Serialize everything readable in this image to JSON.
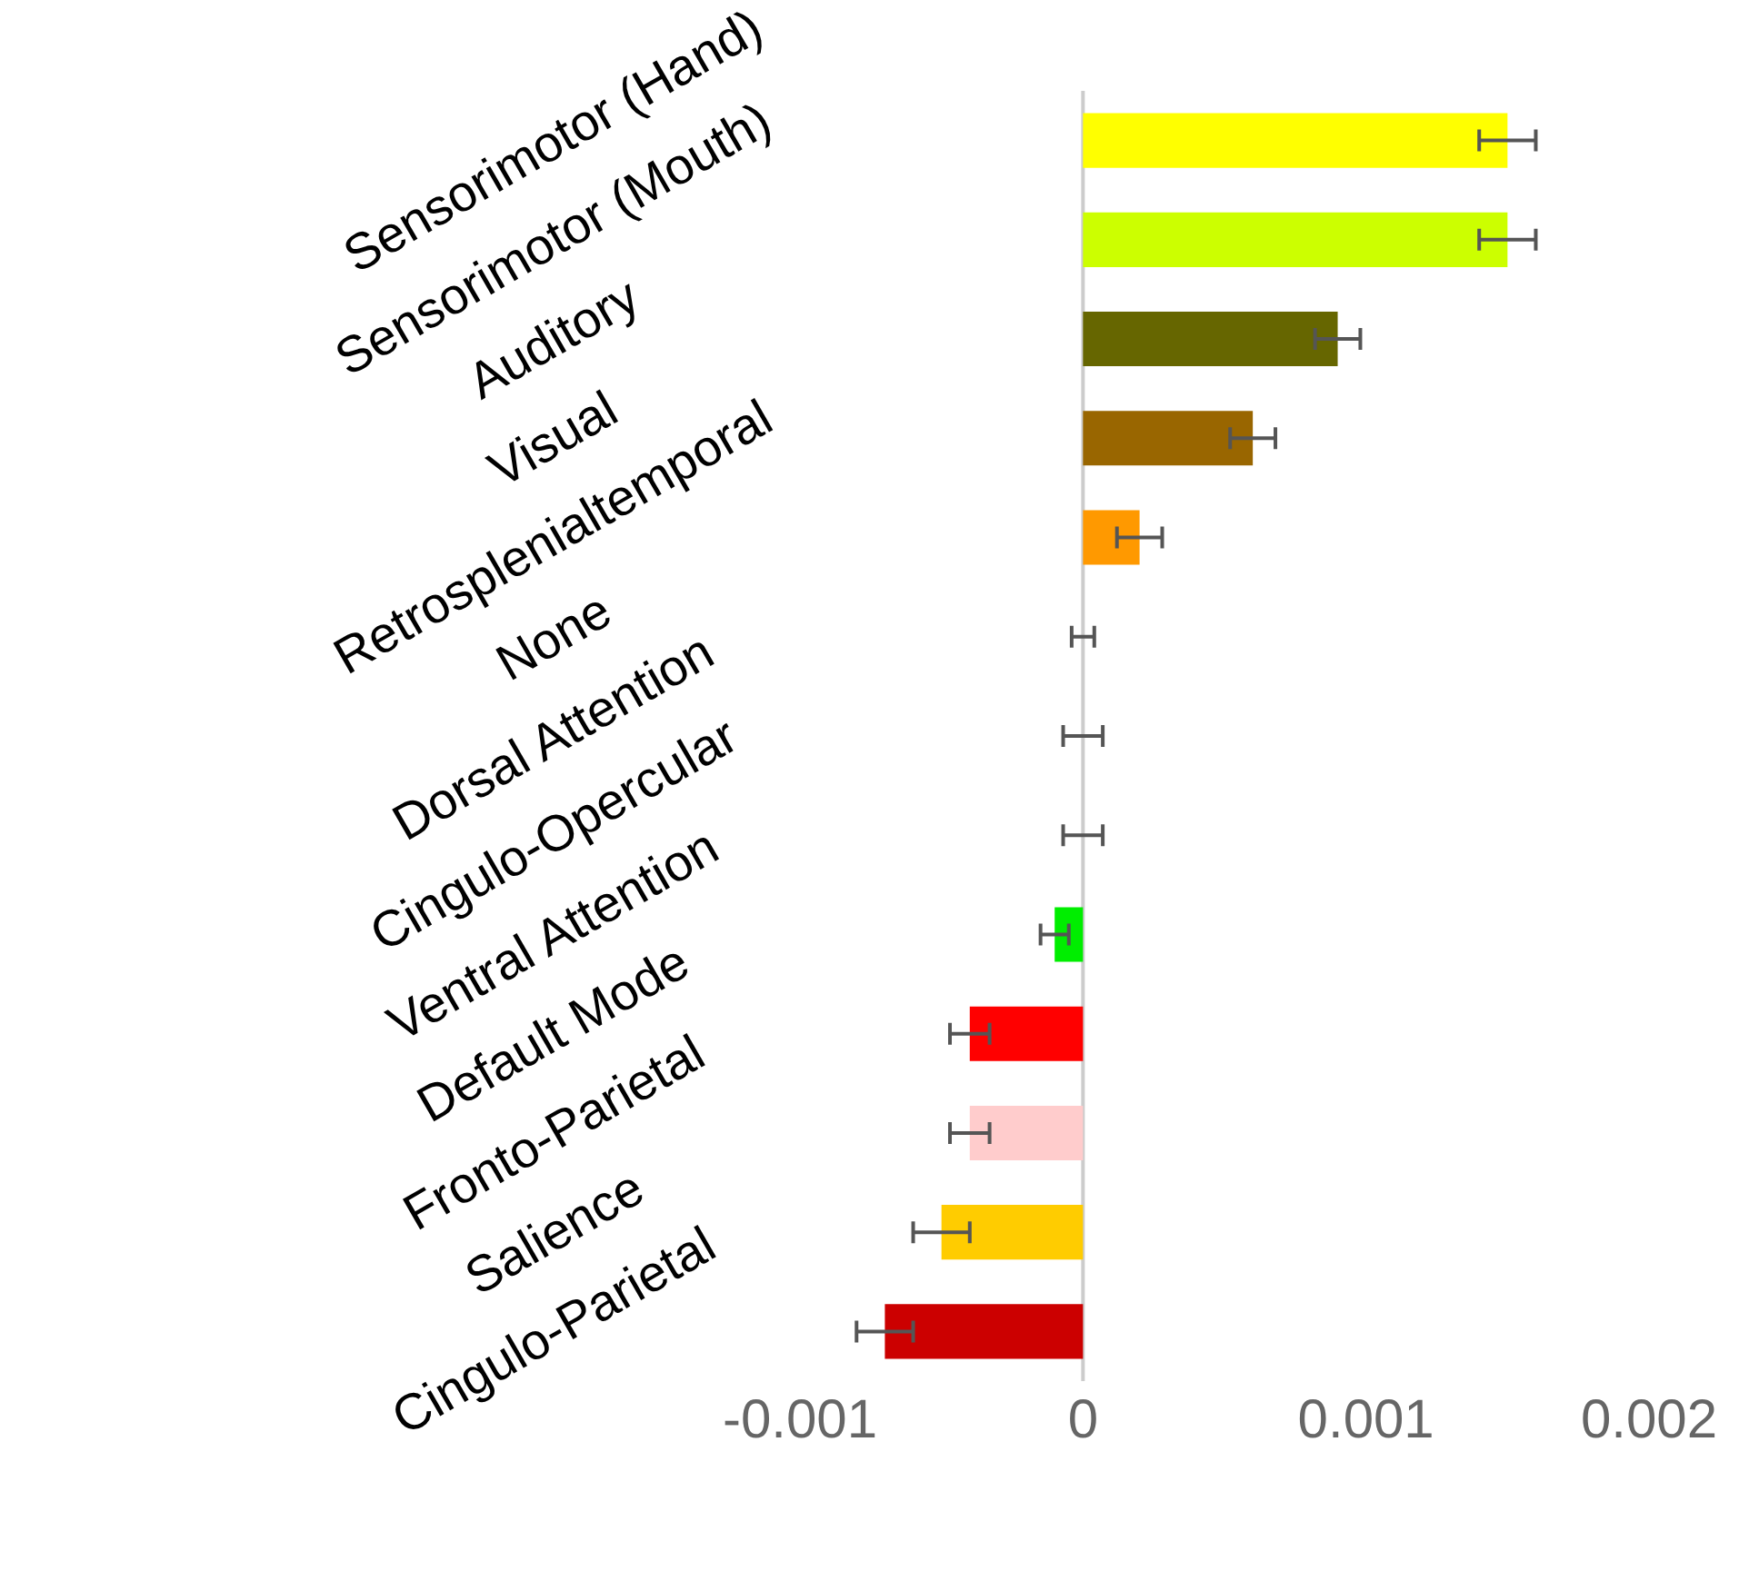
{
  "chart_data": {
    "type": "bar",
    "orientation": "horizontal",
    "categories": [
      "Sensorimotor (Hand)",
      "Sensorimotor (Mouth)",
      "Auditory",
      "Visual",
      "Retrosplenialtemporal",
      "None",
      "Dorsal Attention",
      "Cingulo-Opercular",
      "Ventral Attention",
      "Default Mode",
      "Fronto-Parietal",
      "Salience",
      "Cingulo-Parietal"
    ],
    "values": [
      0.0015,
      0.0015,
      0.0009,
      0.0006,
      0.0002,
      0,
      0,
      0,
      -0.0001,
      -0.0004,
      -0.0004,
      -0.0005,
      -0.0007
    ],
    "errors": [
      0.0001,
      0.0001,
      8e-05,
      8e-05,
      8e-05,
      4e-05,
      7e-05,
      7e-05,
      5e-05,
      7e-05,
      7e-05,
      0.0001,
      0.0001
    ],
    "colors": [
      "#ffff00",
      "#ccff00",
      "#666600",
      "#996600",
      "#ff9900",
      "#ffffff",
      "#00cc00",
      "#9933cc",
      "#00ee00",
      "#ff0000",
      "#ffcccc",
      "#ffcc00",
      "#cc0000"
    ],
    "xlim": [
      -0.001,
      0.002
    ],
    "xticks": [
      -0.001,
      0,
      0.001,
      0.002
    ],
    "ref_lines": [
      {
        "axis": "x",
        "value": 0,
        "color": "#cccccc"
      }
    ]
  }
}
